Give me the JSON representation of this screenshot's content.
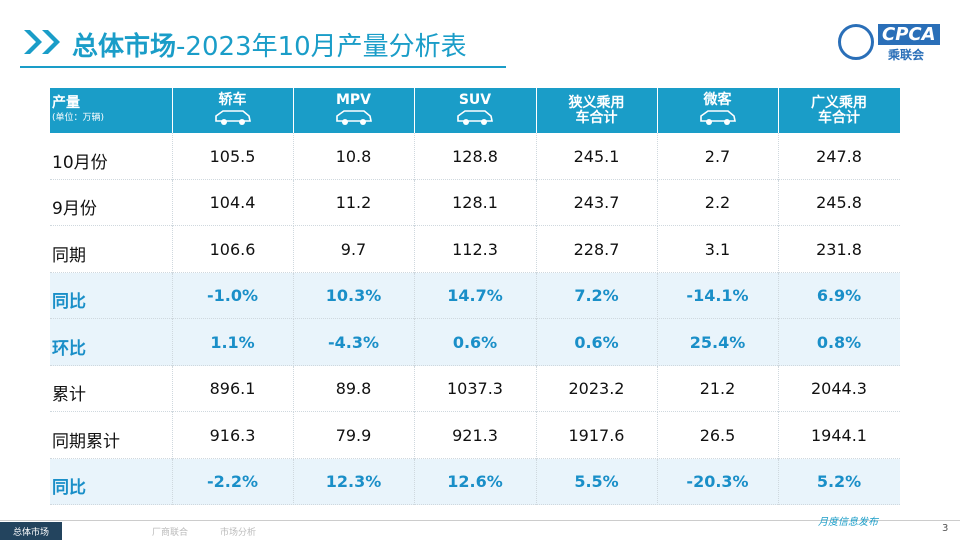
{
  "header": {
    "title_main": "总体市场",
    "title_rest": "-2023年10月产量分析表",
    "logo_text": "CPCA",
    "logo_sub": "乘联会"
  },
  "table": {
    "corner": {
      "title": "产量",
      "unit": "(单位：万辆)"
    },
    "columns": [
      "轿车",
      "MPV",
      "SUV",
      "狭义乘用车合计",
      "微客",
      "广义乘用车合计"
    ],
    "rows": [
      {
        "label": "10月份",
        "values": [
          "105.5",
          "10.8",
          "128.8",
          "245.1",
          "2.7",
          "247.8"
        ]
      },
      {
        "label": "9月份",
        "values": [
          "104.4",
          "11.2",
          "128.1",
          "243.7",
          "2.2",
          "245.8"
        ]
      },
      {
        "label": "同期",
        "values": [
          "106.6",
          "9.7",
          "112.3",
          "228.7",
          "3.1",
          "231.8"
        ]
      },
      {
        "label": "同比",
        "values": [
          "-1.0%",
          "10.3%",
          "14.7%",
          "7.2%",
          "-14.1%",
          "6.9%"
        ]
      },
      {
        "label": "环比",
        "values": [
          "1.1%",
          "-4.3%",
          "0.6%",
          "0.6%",
          "25.4%",
          "0.8%"
        ]
      },
      {
        "label": "累计",
        "values": [
          "896.1",
          "89.8",
          "1037.3",
          "2023.2",
          "21.2",
          "2044.3"
        ]
      },
      {
        "label": "同期累计",
        "values": [
          "916.3",
          "79.9",
          "921.3",
          "1917.6",
          "26.5",
          "1944.1"
        ]
      },
      {
        "label": "同比",
        "values": [
          "-2.2%",
          "12.3%",
          "12.6%",
          "5.5%",
          "-20.3%",
          "5.2%"
        ]
      }
    ]
  },
  "footer": {
    "tabs": [
      "总体市场",
      "厂商联合",
      "市场分析"
    ],
    "release": "月度信息发布",
    "page": "3"
  }
}
